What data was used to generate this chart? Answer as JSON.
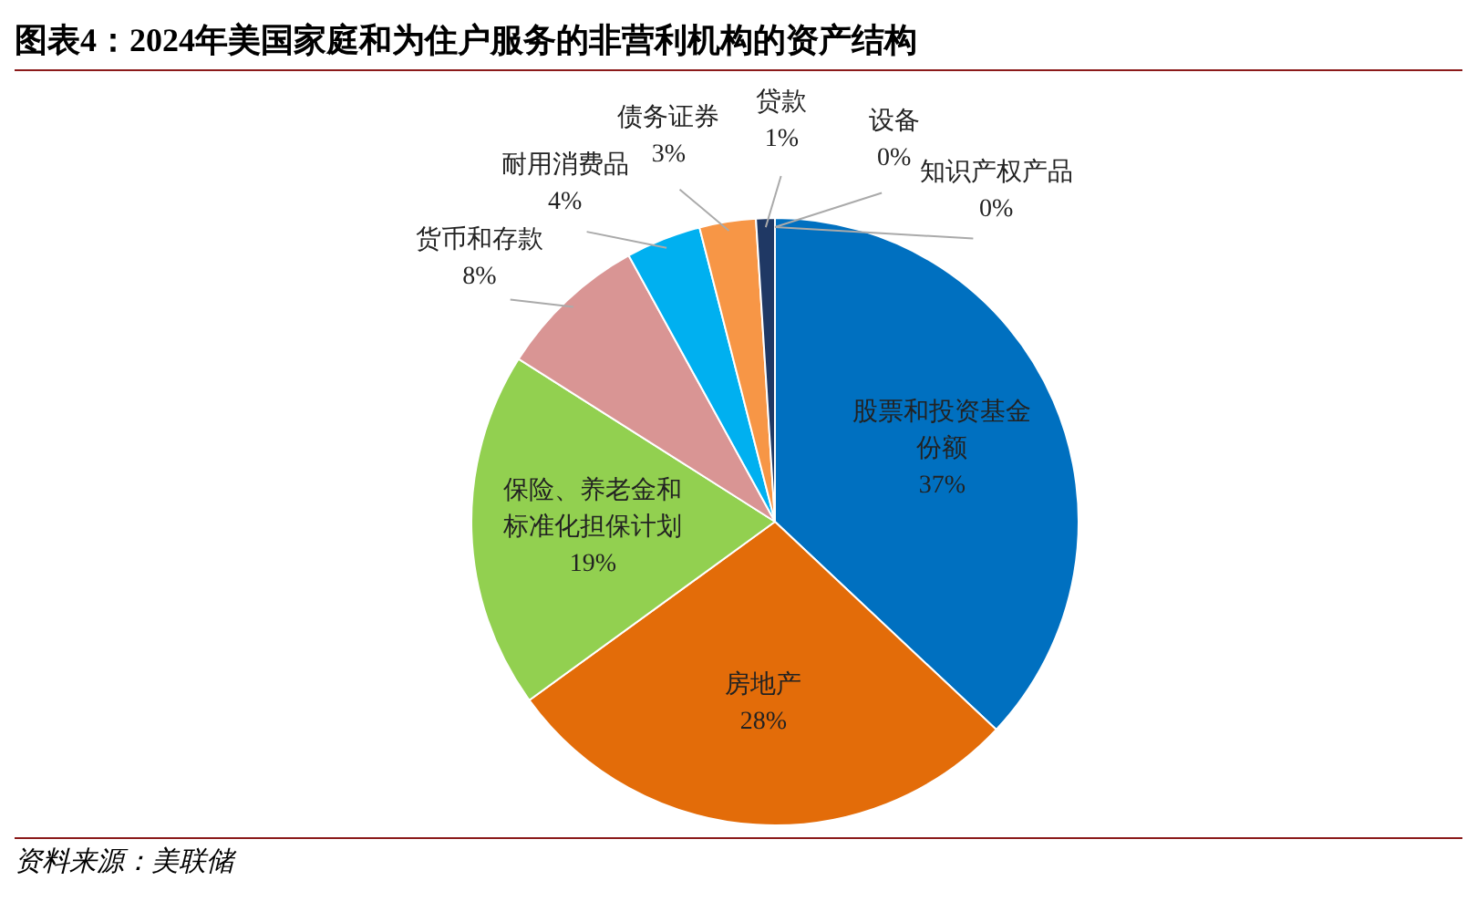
{
  "chart_data": {
    "type": "pie",
    "title": "图表4：2024年美国家庭和为住户服务的非营利机构的资产结构",
    "categories": [
      "股票和投资基金份额",
      "房地产",
      "保险、养老金和标准化担保计划",
      "货币和存款",
      "耐用消费品",
      "债务证券",
      "贷款",
      "设备",
      "知识产权产品"
    ],
    "values": [
      37,
      28,
      19,
      8,
      4,
      3,
      1,
      0,
      0
    ],
    "value_labels": [
      "37%",
      "28%",
      "19%",
      "8%",
      "4%",
      "3%",
      "1%",
      "0%",
      "0%"
    ],
    "colors": [
      "#0070c0",
      "#e36c09",
      "#92d050",
      "#d99594",
      "#00b0f0",
      "#f79646",
      "#1f3864",
      "#7f7f7f",
      "#bfbfbf"
    ],
    "annotations": [
      "资料来源：美联储"
    ]
  }
}
